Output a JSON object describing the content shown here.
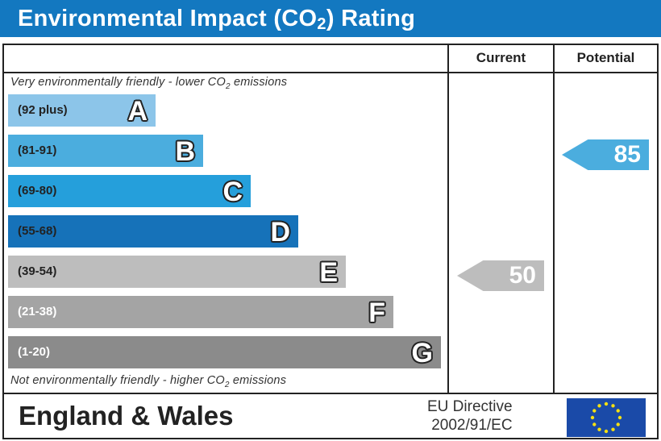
{
  "header": {
    "title_pre": "Environmental Impact (CO",
    "title_sub": "2",
    "title_post": ") Rating"
  },
  "columns": {
    "current": "Current",
    "potential": "Potential"
  },
  "notes": {
    "top_pre": "Very environmentally friendly - lower CO",
    "top_sub": "2",
    "top_post": " emissions",
    "bottom_pre": "Not environmentally friendly - higher CO",
    "bottom_sub": "2",
    "bottom_post": " emissions"
  },
  "chart_data": {
    "type": "bar",
    "bands": [
      {
        "letter": "A",
        "range": "(92 plus)",
        "color": "#8cc5e9"
      },
      {
        "letter": "B",
        "range": "(81-91)",
        "color": "#4badde"
      },
      {
        "letter": "C",
        "range": "(69-80)",
        "color": "#259fdb"
      },
      {
        "letter": "D",
        "range": "(55-68)",
        "color": "#1672b9"
      },
      {
        "letter": "E",
        "range": "(39-54)",
        "color": "#bdbdbd"
      },
      {
        "letter": "F",
        "range": "(21-38)",
        "color": "#a4a4a4"
      },
      {
        "letter": "G",
        "range": "(1-20)",
        "color": "#8b8b8b"
      }
    ],
    "current": {
      "value": 50,
      "band": "E",
      "color": "#bdbdbd"
    },
    "potential": {
      "value": 85,
      "band": "B",
      "color": "#4badde"
    }
  },
  "footer": {
    "region": "England & Wales",
    "directive_line1": "EU Directive",
    "directive_line2": "2002/91/EC"
  }
}
